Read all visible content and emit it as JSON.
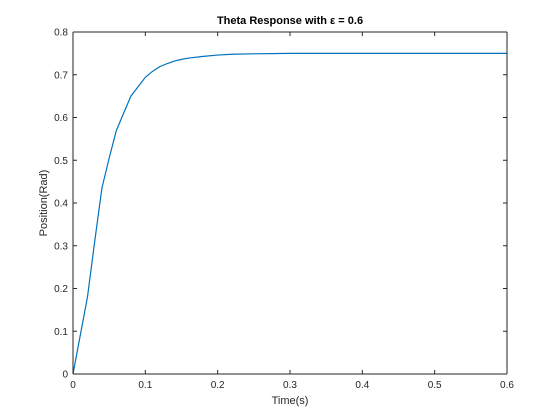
{
  "chart_data": {
    "type": "line",
    "title": "Theta Response with ε = 0.6",
    "xlabel": "Time(s)",
    "ylabel": "Position(Rad)",
    "xlim": [
      0,
      0.6
    ],
    "ylim": [
      0,
      0.8
    ],
    "xticks": [
      0,
      0.1,
      0.2,
      0.3,
      0.4,
      0.5,
      0.6
    ],
    "xtick_labels": [
      "0",
      "0.1",
      "0.2",
      "0.3",
      "0.4",
      "0.5",
      "0.6"
    ],
    "yticks": [
      0,
      0.1,
      0.2,
      0.3,
      0.4,
      0.5,
      0.6,
      0.7,
      0.8
    ],
    "ytick_labels": [
      "0",
      "0.1",
      "0.2",
      "0.3",
      "0.4",
      "0.5",
      "0.6",
      "0.7",
      "0.8"
    ],
    "grid": false,
    "series": [
      {
        "color": "#0072bd",
        "x": [
          0,
          0.01,
          0.02,
          0.03,
          0.04,
          0.05,
          0.06,
          0.07,
          0.08,
          0.09,
          0.1,
          0.11,
          0.12,
          0.13,
          0.14,
          0.15,
          0.16,
          0.18,
          0.2,
          0.22,
          0.25,
          0.3,
          0.35,
          0.4,
          0.45,
          0.5,
          0.55,
          0.6
        ],
        "y": [
          0,
          0.09,
          0.18,
          0.31,
          0.435,
          0.505,
          0.57,
          0.61,
          0.65,
          0.672,
          0.694,
          0.708,
          0.719,
          0.726,
          0.732,
          0.736,
          0.739,
          0.743,
          0.746,
          0.748,
          0.749,
          0.75,
          0.75,
          0.75,
          0.75,
          0.75,
          0.75,
          0.75
        ]
      }
    ]
  }
}
